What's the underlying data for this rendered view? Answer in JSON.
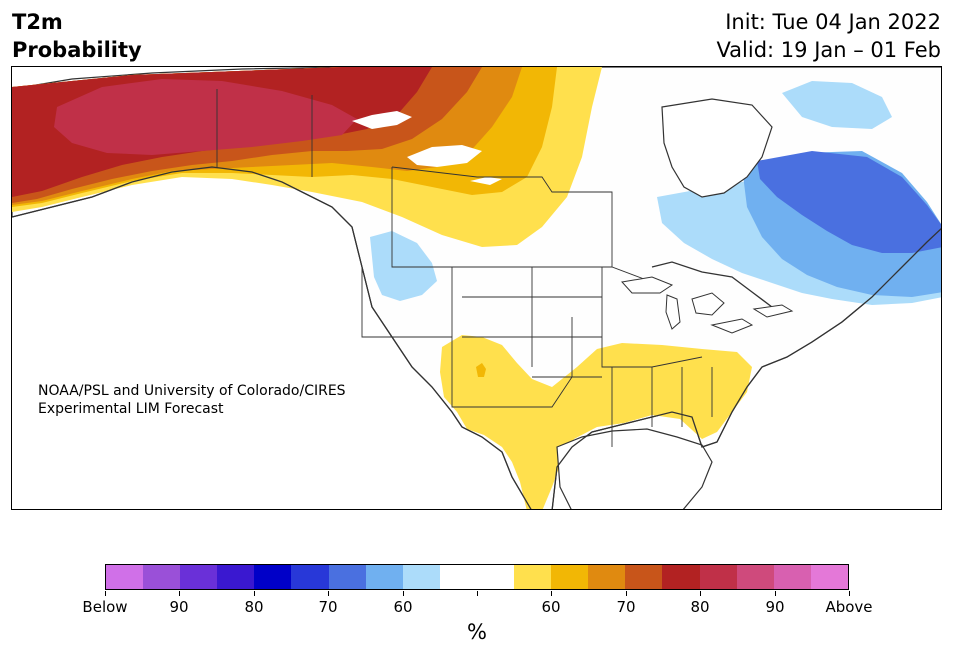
{
  "header": {
    "title_line1": "T2m",
    "title_line2": "Probability",
    "init_line": "Init: Tue 04 Jan 2022",
    "valid_line": "Valid: 19 Jan – 01 Feb"
  },
  "credit": {
    "line1": "NOAA/PSL and University of Colorado/CIRES",
    "line2": "Experimental LIM Forecast"
  },
  "colors": {
    "land": "#fefefe",
    "coast": "#333333",
    "above_60": "#ffe04d",
    "above_65": "#f2b705",
    "above_70": "#e08a10",
    "above_75": "#c8551a",
    "above_80": "#b22222",
    "above_85": "#c03048",
    "below_60": "#acdcfa",
    "below_65": "#70b0f0",
    "below_70": "#4a70e0"
  },
  "colorbar": {
    "colors": [
      "#d070e8",
      "#9a50d8",
      "#6a30d8",
      "#3a18d0",
      "#0000c8",
      "#2838d8",
      "#4a70e0",
      "#70b0f0",
      "#acdcfa",
      "#ffffff",
      "#ffffff",
      "#ffe04d",
      "#f2b705",
      "#e08a10",
      "#c8551a",
      "#b22222",
      "#c03048",
      "#cf4a7c",
      "#d860b0",
      "#e478d8"
    ],
    "labels": [
      "Below",
      "90",
      "80",
      "70",
      "60",
      "",
      "60",
      "70",
      "80",
      "90",
      "Above"
    ],
    "unit": "%"
  }
}
